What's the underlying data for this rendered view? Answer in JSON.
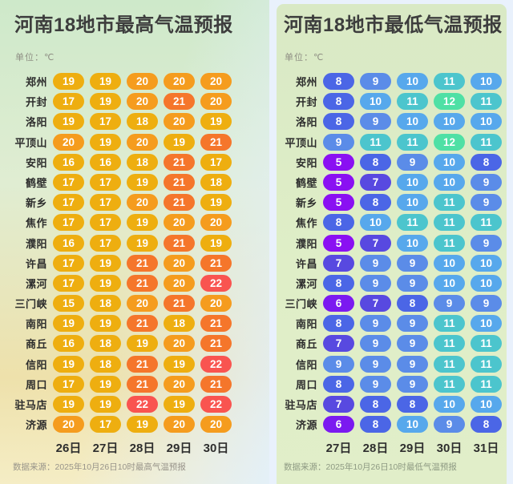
{
  "page": {
    "bg": "#e9f1fc"
  },
  "chart_data": [
    {
      "type": "heatmap",
      "title": "河南18地市最高气温预报",
      "unit": "单位：℃",
      "columns": [
        "26日",
        "27日",
        "28日",
        "29日",
        "30日"
      ],
      "footer": "数据来源：2025年10月26日10时最高气温预报",
      "color_scale": {
        "15": "#eeae10",
        "16": "#eeae10",
        "17": "#eeae10",
        "18": "#eeae10",
        "19": "#eeae10",
        "20": "#f59c1e",
        "21": "#f5762b",
        "22": "#f95450"
      },
      "series": [
        {
          "city": "郑州",
          "values": [
            19,
            19,
            20,
            20,
            20
          ]
        },
        {
          "city": "开封",
          "values": [
            17,
            19,
            20,
            21,
            20
          ]
        },
        {
          "city": "洛阳",
          "values": [
            19,
            17,
            18,
            20,
            19
          ]
        },
        {
          "city": "平顶山",
          "values": [
            20,
            19,
            20,
            19,
            21
          ]
        },
        {
          "city": "安阳",
          "values": [
            16,
            16,
            18,
            21,
            17
          ]
        },
        {
          "city": "鹤壁",
          "values": [
            17,
            17,
            19,
            21,
            18
          ]
        },
        {
          "city": "新乡",
          "values": [
            17,
            17,
            20,
            21,
            19
          ]
        },
        {
          "city": "焦作",
          "values": [
            17,
            17,
            19,
            20,
            20
          ]
        },
        {
          "city": "濮阳",
          "values": [
            16,
            17,
            19,
            21,
            19
          ]
        },
        {
          "city": "许昌",
          "values": [
            17,
            19,
            21,
            20,
            21
          ]
        },
        {
          "city": "漯河",
          "values": [
            17,
            19,
            21,
            20,
            22
          ]
        },
        {
          "city": "三门峡",
          "values": [
            15,
            18,
            20,
            21,
            20
          ]
        },
        {
          "city": "南阳",
          "values": [
            19,
            19,
            21,
            18,
            21
          ]
        },
        {
          "city": "商丘",
          "values": [
            16,
            18,
            19,
            20,
            21
          ]
        },
        {
          "city": "信阳",
          "values": [
            19,
            18,
            21,
            19,
            22
          ]
        },
        {
          "city": "周口",
          "values": [
            17,
            19,
            21,
            20,
            21
          ]
        },
        {
          "city": "驻马店",
          "values": [
            19,
            19,
            22,
            19,
            22
          ]
        },
        {
          "city": "济源",
          "values": [
            20,
            17,
            19,
            20,
            20
          ]
        }
      ]
    },
    {
      "type": "heatmap",
      "title": "河南18地市最低气温预报",
      "unit": "单位：℃",
      "columns": [
        "27日",
        "28日",
        "29日",
        "30日",
        "31日"
      ],
      "footer": "数据来源：2025年10月26日10时最低气温预报",
      "color_scale": {
        "5": "#8a10f2",
        "6": "#7b1af0",
        "7": "#5849e0",
        "8": "#4b66e6",
        "9": "#5b8ce8",
        "10": "#57a8ec",
        "11": "#4cc5cd",
        "12": "#4fe0a5"
      },
      "series": [
        {
          "city": "郑州",
          "values": [
            8,
            9,
            10,
            11,
            10
          ]
        },
        {
          "city": "开封",
          "values": [
            8,
            10,
            11,
            12,
            11
          ]
        },
        {
          "city": "洛阳",
          "values": [
            8,
            9,
            10,
            10,
            10
          ]
        },
        {
          "city": "平顶山",
          "values": [
            9,
            11,
            11,
            12,
            11
          ]
        },
        {
          "city": "安阳",
          "values": [
            5,
            8,
            9,
            10,
            8
          ]
        },
        {
          "city": "鹤壁",
          "values": [
            5,
            7,
            10,
            10,
            9
          ]
        },
        {
          "city": "新乡",
          "values": [
            5,
            8,
            10,
            11,
            9
          ]
        },
        {
          "city": "焦作",
          "values": [
            8,
            10,
            11,
            11,
            11
          ]
        },
        {
          "city": "濮阳",
          "values": [
            5,
            7,
            10,
            11,
            9
          ]
        },
        {
          "city": "许昌",
          "values": [
            7,
            9,
            9,
            10,
            10
          ]
        },
        {
          "city": "漯河",
          "values": [
            8,
            9,
            9,
            10,
            10
          ]
        },
        {
          "city": "三门峡",
          "values": [
            6,
            7,
            8,
            9,
            9
          ]
        },
        {
          "city": "南阳",
          "values": [
            8,
            9,
            9,
            11,
            10
          ]
        },
        {
          "city": "商丘",
          "values": [
            7,
            9,
            9,
            11,
            11
          ]
        },
        {
          "city": "信阳",
          "values": [
            9,
            9,
            9,
            11,
            11
          ]
        },
        {
          "city": "周口",
          "values": [
            8,
            9,
            9,
            11,
            11
          ]
        },
        {
          "city": "驻马店",
          "values": [
            7,
            8,
            8,
            10,
            10
          ]
        },
        {
          "city": "济源",
          "values": [
            6,
            8,
            10,
            9,
            8
          ]
        }
      ]
    }
  ]
}
